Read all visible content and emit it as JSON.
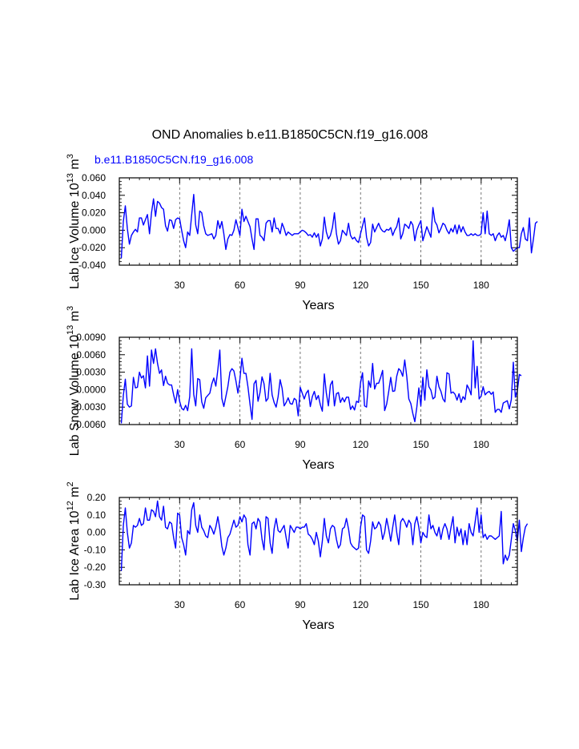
{
  "page": {
    "title": "OND Anomalies b.e11.B1850C5CN.f19_g16.008",
    "subtitle": "b.e11.B1850C5CN.f19_g16.008",
    "subtitle_color": "#0000ff"
  },
  "chart_data": [
    {
      "type": "line",
      "xlabel": "Years",
      "ylabel_main": "Lab Ice Volume 10",
      "ylabel_exp": "13",
      "ylabel_unit": " m",
      "ylabel_unit_exp": "3",
      "xlim": [
        0,
        198
      ],
      "ylim": [
        -0.04,
        0.06
      ],
      "yticks": [
        -0.04,
        -0.02,
        0.0,
        0.02,
        0.04,
        0.06
      ],
      "ytick_labels": [
        "-0.040",
        "-0.020",
        "0.000",
        "0.020",
        "0.040",
        "0.060"
      ],
      "xticks": [
        30,
        60,
        90,
        120,
        150,
        180
      ],
      "xtick_labels": [
        "30",
        "60",
        "90",
        "120",
        "150",
        "180"
      ],
      "gridlines": "vertical dashed at x ticks",
      "series": [
        {
          "name": "b.e11.B1850C5CN.f19_g16.008",
          "color": "#0000ff",
          "values": [
            -0.032,
            0.01,
            0.028,
            0.002,
            -0.016,
            -0.006,
            -0.002,
            0.001,
            -0.002,
            0.014,
            0.014,
            0.006,
            0.012,
            0.018,
            -0.004,
            0.02,
            0.036,
            0.016,
            0.033,
            0.031,
            0.026,
            0.024,
            0.005,
            -0.001,
            0.012,
            0.011,
            0.002,
            0.012,
            0.014,
            0.013,
            0.0,
            -0.012,
            -0.02,
            -0.002,
            -0.006,
            0.018,
            0.041,
            0.006,
            -0.004,
            0.022,
            0.02,
            0.005,
            -0.004,
            -0.006,
            -0.005,
            -0.004,
            -0.01,
            -0.006,
            0.011,
            0.002,
            0.01,
            -0.004,
            -0.022,
            -0.01,
            -0.005,
            -0.006,
            0.0,
            0.012,
            0.003,
            -0.006,
            0.024,
            0.01,
            0.016,
            0.01,
            0.004,
            -0.01,
            -0.022,
            0.013,
            0.013,
            -0.006,
            -0.008,
            -0.012,
            0.008,
            0.011,
            0.011,
            -0.002,
            0.014,
            0.002,
            0.002,
            -0.004,
            0.008,
            0.002,
            -0.006,
            -0.002,
            -0.004,
            -0.006,
            -0.004,
            -0.004,
            -0.004,
            -0.002,
            0.0,
            -0.001,
            -0.003,
            -0.006,
            -0.005,
            -0.008,
            -0.003,
            -0.008,
            -0.004,
            -0.018,
            -0.01,
            0.015,
            -0.002,
            -0.01,
            -0.006,
            0.003,
            0.02,
            -0.004,
            -0.016,
            -0.012,
            0.0,
            -0.003,
            -0.006,
            0.008,
            -0.006,
            -0.01,
            -0.008,
            -0.012,
            -0.014,
            -0.004,
            0.005,
            0.014,
            -0.008,
            -0.018,
            -0.014,
            0.007,
            -0.002,
            0.003,
            0.008,
            0.002,
            -0.001,
            -0.002,
            0.001,
            0.0,
            0.003,
            -0.006,
            0.0,
            0.004,
            0.014,
            -0.01,
            -0.004,
            0.007,
            0.005,
            0.002,
            0.01,
            0.006,
            -0.012,
            0.0,
            0.006,
            0.011,
            -0.012,
            -0.004,
            0.004,
            -0.002,
            -0.008,
            0.026,
            0.01,
            0.006,
            -0.003,
            0.002,
            0.008,
            0.006,
            0.0,
            -0.004,
            0.002,
            -0.002,
            0.006,
            -0.004,
            0.006,
            -0.002,
            0.004,
            -0.002,
            -0.006,
            -0.006,
            -0.004,
            -0.006,
            -0.004,
            -0.006,
            -0.006,
            -0.004,
            0.02,
            -0.004,
            0.022,
            -0.004,
            -0.006,
            -0.004,
            -0.012,
            -0.006,
            -0.003,
            -0.008,
            -0.006,
            -0.012,
            -0.002,
            0.012,
            -0.02,
            -0.024,
            -0.022,
            -0.02,
            -0.02,
            -0.004,
            0.003,
            -0.01,
            -0.012,
            0.014,
            -0.026,
            -0.01,
            0.008,
            0.01
          ]
        }
      ]
    },
    {
      "type": "line",
      "xlabel": "Years",
      "ylabel_main": "Lab Snow Volume 10",
      "ylabel_exp": "13",
      "ylabel_unit": " m",
      "ylabel_unit_exp": "3",
      "xlim": [
        0,
        198
      ],
      "ylim": [
        -0.006,
        0.009
      ],
      "yticks": [
        -0.006,
        -0.003,
        0.0,
        0.003,
        0.006,
        0.009
      ],
      "ytick_labels": [
        "-0.0060",
        "-0.0030",
        "0.0000",
        "0.0030",
        "0.0060",
        "0.0090"
      ],
      "xticks": [
        30,
        60,
        90,
        120,
        150,
        180
      ],
      "xtick_labels": [
        "30",
        "60",
        "90",
        "120",
        "150",
        "180"
      ],
      "gridlines": "vertical dashed at x ticks",
      "series": [
        {
          "name": "b.e11.B1850C5CN.f19_g16.008",
          "color": "#0000ff",
          "values": [
            -0.0058,
            -0.001,
            0.0018,
            -0.0025,
            -0.003,
            -0.0028,
            0.0021,
            0.0003,
            0.0004,
            0.003,
            0.002,
            0.0024,
            0.0003,
            0.0058,
            0.0006,
            0.0068,
            0.0045,
            0.007,
            0.0045,
            0.0028,
            0.0034,
            0.0007,
            0.0023,
            0.0011,
            0.0008,
            0.0008,
            -0.0009,
            -0.0023,
            0.0,
            -0.002,
            -0.0032,
            -0.0035,
            -0.0027,
            -0.0036,
            -0.0012,
            0.007,
            -0.0008,
            -0.0028,
            0.0019,
            0.0017,
            -0.0021,
            -0.0032,
            -0.0014,
            -0.001,
            -0.0006,
            0.001,
            0.002,
            0.0006,
            0.0034,
            0.0068,
            -0.0015,
            -0.0029,
            -0.0012,
            0.0005,
            0.003,
            0.0036,
            0.0032,
            0.0015,
            -0.0006,
            0.0018,
            0.0054,
            0.0028,
            0.0028,
            0.0005,
            -0.0025,
            -0.0051,
            0.001,
            0.0016,
            -0.002,
            -0.0005,
            0.0022,
            0.001,
            -0.002,
            -0.0015,
            0.0028,
            -0.0009,
            -0.0022,
            -0.003,
            -0.0012,
            0.0017,
            0.0002,
            -0.0028,
            -0.0022,
            -0.0014,
            -0.0024,
            -0.0025,
            -0.0015,
            -0.0018,
            -0.0045,
            0.0004,
            -0.0006,
            -0.0016,
            -0.0006,
            -0.0001,
            -0.0029,
            -0.0012,
            -0.0003,
            -0.0017,
            -0.001,
            -0.0026,
            -0.0037,
            0.0027,
            -0.0006,
            -0.0028,
            0.0008,
            0.0015,
            -0.0028,
            -0.0007,
            -0.0005,
            -0.0022,
            -0.0014,
            -0.0021,
            -0.0013,
            -0.0013,
            -0.0034,
            -0.0028,
            -0.0035,
            -0.002,
            -0.0022,
            0.0012,
            0.0029,
            -0.0028,
            -0.003,
            0.0015,
            0.0004,
            0.0045,
            0.0001,
            0.0011,
            0.0011,
            0.0021,
            0.0033,
            -0.0036,
            -0.0025,
            -0.0003,
            0.0021,
            -0.0003,
            -0.0002,
            0.0023,
            0.0036,
            0.0032,
            0.0023,
            0.0051,
            0.0023,
            -0.0016,
            -0.0024,
            -0.0041,
            -0.0055,
            -0.003,
            0.0003,
            -0.0028,
            0.0021,
            -0.0018,
            0.0034,
            0.0005,
            -0.0001,
            -0.0016,
            -0.0013,
            0.0023,
            0.0005,
            -0.0003,
            -0.0016,
            -0.0021,
            0.0029,
            0.0027,
            -0.0006,
            -0.0004,
            -0.0008,
            -0.0018,
            -0.0007,
            -0.0022,
            -0.0012,
            -0.0017,
            0.0008,
            0.0001,
            -0.0009,
            0.0084,
            0.0003,
            0.004,
            -0.0016,
            -0.0011,
            0.0005,
            -0.0009,
            -0.0005,
            -0.0003,
            -0.0008,
            -0.0004,
            -0.0039,
            -0.0034,
            -0.0034,
            -0.0039,
            -0.0023,
            -0.0021,
            -0.0019,
            -0.0033,
            -0.0017,
            0.0047,
            -0.0013,
            -0.0002,
            0.0026,
            0.0024
          ]
        }
      ]
    },
    {
      "type": "line",
      "xlabel": "Years",
      "ylabel_main": "Lab Ice Area 10",
      "ylabel_exp": "12",
      "ylabel_unit": " m",
      "ylabel_unit_exp": "2",
      "xlim": [
        0,
        198
      ],
      "ylim": [
        -0.3,
        0.2
      ],
      "yticks": [
        -0.3,
        -0.2,
        -0.1,
        0.0,
        0.1,
        0.2
      ],
      "ytick_labels": [
        "-0.30",
        "-0.20",
        "-0.10",
        "0.00",
        "0.10",
        "0.20"
      ],
      "xticks": [
        30,
        60,
        90,
        120,
        150,
        180
      ],
      "xtick_labels": [
        "30",
        "60",
        "90",
        "120",
        "150",
        "180"
      ],
      "gridlines": "vertical dashed at x ticks",
      "series": [
        {
          "name": "b.e11.B1850C5CN.f19_g16.008",
          "color": "#0000ff",
          "values": [
            -0.22,
            0.04,
            0.14,
            0.0,
            -0.09,
            -0.06,
            0.04,
            0.03,
            0.04,
            0.08,
            0.04,
            0.05,
            0.14,
            0.07,
            0.07,
            0.13,
            0.12,
            0.09,
            0.18,
            0.09,
            0.07,
            0.15,
            0.03,
            0.02,
            0.06,
            0.05,
            -0.03,
            -0.09,
            0.11,
            0.1,
            -0.03,
            -0.07,
            -0.13,
            0.01,
            -0.01,
            0.13,
            0.17,
            0.04,
            0.0,
            0.1,
            0.03,
            0.01,
            -0.02,
            -0.03,
            0.04,
            0.02,
            -0.01,
            0.03,
            0.09,
            0.02,
            -0.08,
            -0.13,
            -0.09,
            -0.03,
            -0.01,
            0.03,
            0.07,
            0.03,
            0.04,
            0.09,
            0.06,
            0.1,
            0.08,
            -0.07,
            -0.13,
            0.05,
            0.06,
            0.02,
            0.08,
            0.06,
            -0.04,
            -0.1,
            0.09,
            0.08,
            -0.06,
            -0.12,
            0.02,
            0.08,
            0.01,
            0.0,
            0.02,
            0.04,
            -0.03,
            -0.09,
            0.04,
            0.02,
            0.0,
            0.03,
            0.03,
            0.02,
            0.03,
            0.03,
            0.05,
            -0.01,
            -0.02,
            -0.04,
            -0.07,
            0.0,
            -0.05,
            -0.14,
            -0.05,
            0.08,
            -0.02,
            -0.06,
            0.02,
            0.04,
            0.03,
            -0.04,
            -0.09,
            -0.07,
            0.02,
            0.03,
            0.08,
            0.02,
            -0.06,
            -0.08,
            -0.09,
            -0.1,
            -0.09,
            0.03,
            0.1,
            0.09,
            -0.1,
            -0.12,
            -0.05,
            0.06,
            0.02,
            0.03,
            0.06,
            0.04,
            -0.04,
            0.0,
            0.08,
            0.02,
            -0.05,
            0.03,
            0.1,
            0.0,
            -0.07,
            0.06,
            0.08,
            0.06,
            0.03,
            0.07,
            0.05,
            -0.07,
            0.05,
            0.09,
            0.03,
            -0.06,
            0.0,
            -0.02,
            -0.03,
            0.1,
            0.02,
            0.04,
            0.0,
            -0.02,
            0.03,
            -0.04,
            0.02,
            0.05,
            0.02,
            -0.04,
            0.03,
            0.09,
            -0.06,
            0.03,
            -0.02,
            0.02,
            -0.07,
            0.01,
            -0.07,
            0.05,
            0.0,
            -0.02,
            0.06,
            0.14,
            0.0,
            0.1,
            -0.03,
            -0.01,
            -0.04,
            -0.02,
            -0.02,
            -0.03,
            -0.04,
            -0.03,
            -0.02,
            0.12,
            -0.18,
            -0.13,
            -0.16,
            -0.13,
            -0.04,
            0.05,
            0.01,
            -0.05,
            0.07,
            -0.11,
            -0.03,
            0.03,
            0.05
          ]
        }
      ]
    }
  ]
}
